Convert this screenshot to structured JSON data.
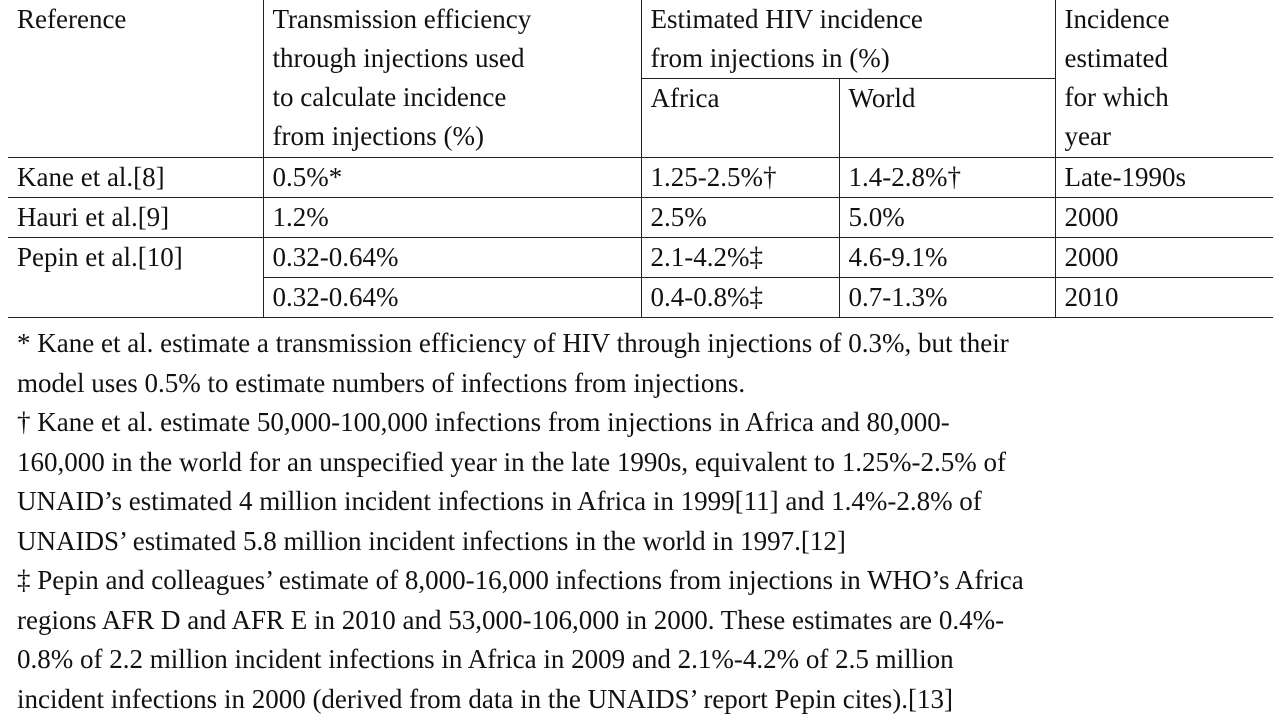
{
  "table": {
    "header": {
      "reference": "Reference",
      "efficiency": [
        "Transmission efficiency",
        "through injections used",
        "to calculate incidence",
        "from injections (%)"
      ],
      "incidence_group": [
        "Estimated HIV incidence",
        "from injections in (%)"
      ],
      "africa": "Africa",
      "world": "World",
      "year": [
        "Incidence",
        "estimated",
        "for which",
        "year"
      ]
    },
    "rows": [
      {
        "reference": "Kane et al.[8]",
        "efficiency": "0.5%*",
        "africa": "1.25-2.5%†",
        "world": "1.4-2.8%†",
        "year": "Late-1990s"
      },
      {
        "reference": "Hauri et al.[9]",
        "efficiency": "1.2%",
        "africa": "2.5%",
        "world": "5.0%",
        "year": "2000"
      },
      {
        "reference": "Pepin et al.[10]",
        "efficiency": "0.32-0.64%",
        "africa": "2.1-4.2%‡",
        "world": "4.6-9.1%",
        "year": "2000"
      },
      {
        "reference": "",
        "efficiency": "0.32-0.64%",
        "africa": "0.4-0.8%‡",
        "world": "0.7-1.3%",
        "year": "2010"
      }
    ]
  },
  "footnotes": [
    [
      "* Kane et al. estimate a transmission efficiency of HIV through injections of 0.3%, but their",
      "model uses 0.5% to estimate numbers of infections from injections."
    ],
    [
      "† Kane et al. estimate 50,000-100,000 infections from injections in Africa and 80,000-",
      "160,000 in the world for an unspecified year in the late 1990s, equivalent to 1.25%-2.5% of",
      "UNAID’s estimated 4 million incident infections in Africa in 1999[11] and 1.4%-2.8% of",
      "UNAIDS’ estimated 5.8 million incident infections in the world in 1997.[12]"
    ],
    [
      "‡ Pepin and colleagues’ estimate of 8,000-16,000 infections from injections in WHO’s Africa",
      "regions AFR D and AFR E in 2010 and 53,000-106,000 in 2000. These estimates are 0.4%-",
      "0.8% of 2.2 million incident infections in Africa in 2009 and 2.1%-4.2% of 2.5 million",
      "incident infections in 2000 (derived from data in the UNAIDS’ report Pepin cites).[13]"
    ]
  ]
}
